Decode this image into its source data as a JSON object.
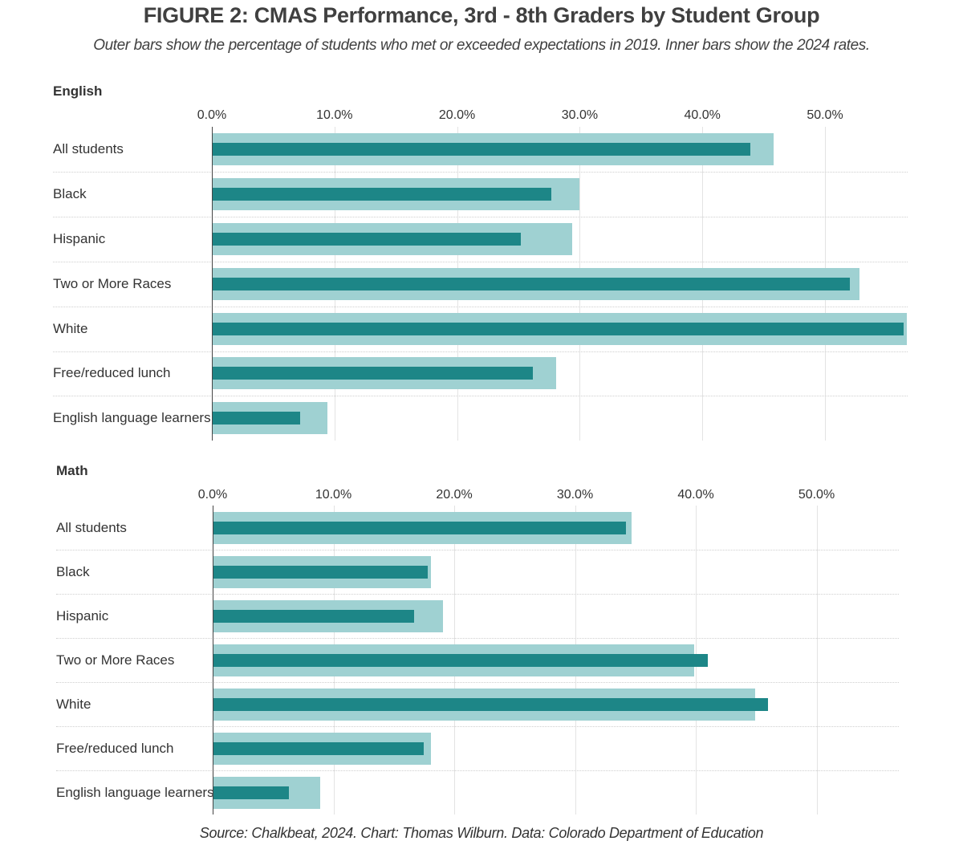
{
  "title": "FIGURE 2: CMAS Performance, 3rd - 8th Graders by Student Group",
  "subtitle": "Outer bars show the percentage of students who met or exceeded expectations in 2019. Inner bars show the 2024 rates.",
  "source": "Source: Chalkbeat, 2024. Chart: Thomas Wilburn. Data: Colorado Department of Education",
  "colors": {
    "outer_2019": "#9fd1d2",
    "inner_2024": "#1d8687"
  },
  "chart_data": [
    {
      "type": "bar",
      "orientation": "horizontal",
      "title": "English",
      "tick_labels": [
        "0.0%",
        "10.0%",
        "20.0%",
        "30.0%",
        "40.0%",
        "50.0%"
      ],
      "xlim": [
        0,
        56.7
      ],
      "categories": [
        "All students",
        "Black",
        "Hispanic",
        "Two or More Races",
        "White",
        "Free/reduced lunch",
        "English language learners"
      ],
      "series": [
        {
          "values": [
            45.8,
            30.0,
            29.4,
            52.8,
            56.7,
            28.1,
            9.4
          ]
        },
        {
          "values": [
            43.9,
            27.7,
            25.2,
            52.0,
            56.4,
            26.2,
            7.2
          ]
        }
      ]
    },
    {
      "type": "bar",
      "orientation": "horizontal",
      "title": "Math",
      "tick_labels": [
        "0.0%",
        "10.0%",
        "20.0%",
        "30.0%",
        "40.0%",
        "50.0%"
      ],
      "xlim": [
        0,
        56.7
      ],
      "categories": [
        "All students",
        "Black",
        "Hispanic",
        "Two or More Races",
        "White",
        "Free/reduced lunch",
        "English language learners"
      ],
      "series": [
        {
          "values": [
            34.7,
            18.1,
            19.1,
            39.9,
            44.9,
            18.1,
            8.9
          ]
        },
        {
          "values": [
            34.2,
            17.8,
            16.7,
            41.0,
            46.0,
            17.5,
            6.3
          ]
        }
      ]
    }
  ]
}
